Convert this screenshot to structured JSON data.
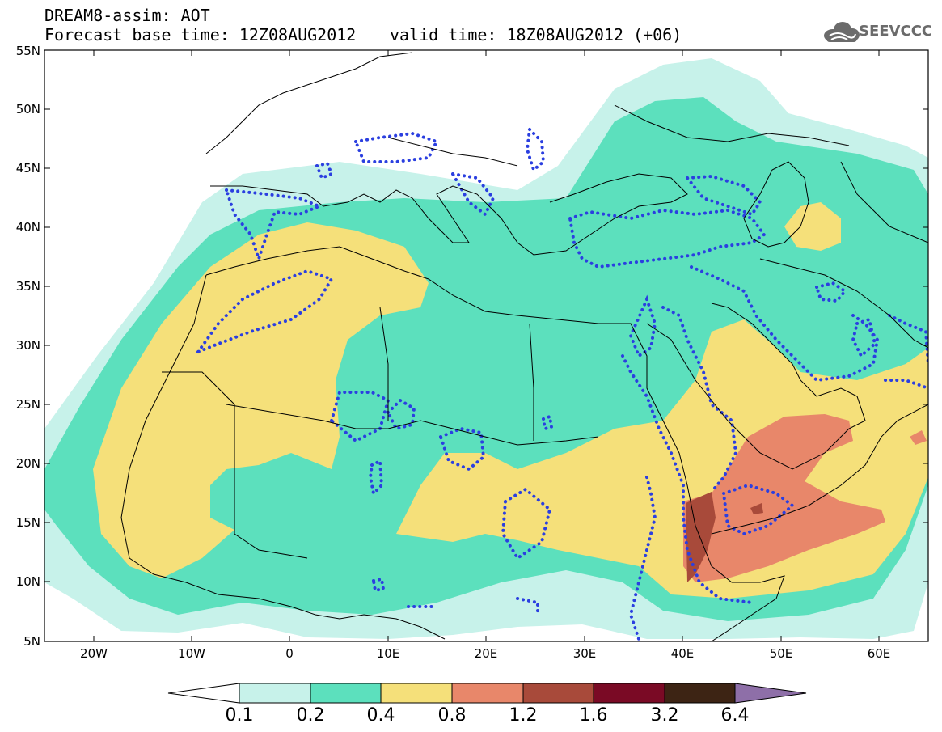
{
  "header": {
    "title": "DREAM8-assim: AOT",
    "base_time": "Forecast base time: 12Z08AUG2012",
    "valid_time": "valid time: 18Z08AUG2012 (+06)",
    "logo_text": "SEEVCCC",
    "logo_icon": "cloud-logo-icon"
  },
  "map": {
    "lat_labels": [
      "55N",
      "50N",
      "45N",
      "40N",
      "35N",
      "30N",
      "25N",
      "20N",
      "15N",
      "10N",
      "5N"
    ],
    "lon_labels": [
      "20W",
      "10W",
      "0",
      "10E",
      "20E",
      "30E",
      "40E",
      "50E",
      "60E"
    ],
    "colors": {
      "c01": "#c7f2ea",
      "c02": "#5ce0bd",
      "c04": "#f5e07a",
      "c08": "#e8876a",
      "c12": "#a84a3a",
      "c16": "#7a0a25",
      "c32": "#3d2414",
      "c64": "#8e6fa8",
      "contour": "#2b3fe0"
    }
  },
  "colorbar": {
    "labels": [
      "0.1",
      "0.2",
      "0.4",
      "0.8",
      "1.2",
      "1.6",
      "3.2",
      "6.4"
    ],
    "colors": [
      "#ffffff",
      "#c7f2ea",
      "#5ce0bd",
      "#f5e07a",
      "#e8876a",
      "#a84a3a",
      "#7a0a25",
      "#3d2414",
      "#8e6fa8"
    ]
  }
}
